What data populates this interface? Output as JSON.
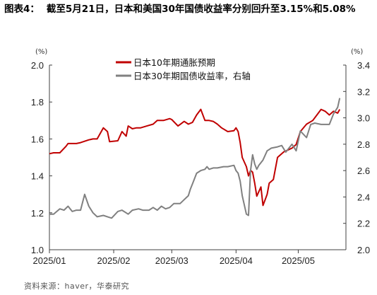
{
  "figure": {
    "label": "图表4：",
    "title": "截至5月21日，日本和美国30年国债收益率分别回升至3.15%和5.08%",
    "source": "资料来源：haver，华泰研究"
  },
  "colors": {
    "red": "#c00000",
    "gray": "#808080",
    "axis": "#404040"
  },
  "chart_data": {
    "type": "line",
    "x_ticks": [
      "2025/01",
      "2025/02",
      "2025/03",
      "2025/04",
      "2025/05"
    ],
    "left_axis": {
      "unit": "(%)",
      "ylim": [
        1.0,
        2.0
      ],
      "ticks": [
        "1.0",
        "1.2",
        "1.4",
        "1.6",
        "1.8",
        "2.0"
      ]
    },
    "right_axis": {
      "unit": "(%)",
      "ylim": [
        2.0,
        3.4
      ],
      "ticks": [
        "2.0",
        "2.2",
        "2.4",
        "2.6",
        "2.8",
        "3.0",
        "3.2",
        "3.4"
      ]
    },
    "legend_position": "top-center",
    "series": [
      {
        "name": "日本10年期通胀预期",
        "axis": "left",
        "color": "#c00000",
        "x": [
          "2025-01-01",
          "2025-01-03",
          "2025-01-06",
          "2025-01-09",
          "2025-01-10",
          "2025-01-13",
          "2025-01-14",
          "2025-01-16",
          "2025-01-20",
          "2025-01-22",
          "2025-01-24",
          "2025-01-27",
          "2025-01-29",
          "2025-01-30",
          "2025-02-03",
          "2025-02-05",
          "2025-02-07",
          "2025-02-08",
          "2025-02-10",
          "2025-02-12",
          "2025-02-14",
          "2025-02-17",
          "2025-02-20",
          "2025-02-22",
          "2025-02-25",
          "2025-02-28",
          "2025-03-01",
          "2025-03-04",
          "2025-03-07",
          "2025-03-09",
          "2025-03-11",
          "2025-03-13",
          "2025-03-15",
          "2025-03-17",
          "2025-03-19",
          "2025-03-21",
          "2025-03-23",
          "2025-03-25",
          "2025-03-28",
          "2025-03-31",
          "2025-04-01",
          "2025-04-02",
          "2025-04-03",
          "2025-04-04",
          "2025-04-06",
          "2025-04-07",
          "2025-04-08",
          "2025-04-09",
          "2025-04-10",
          "2025-04-11",
          "2025-04-13",
          "2025-04-14",
          "2025-04-15",
          "2025-04-16",
          "2025-04-17",
          "2025-04-19",
          "2025-04-21",
          "2025-04-24",
          "2025-04-26",
          "2025-04-28",
          "2025-04-30",
          "2025-05-02",
          "2025-05-05",
          "2025-05-08",
          "2025-05-10",
          "2025-05-12",
          "2025-05-14",
          "2025-05-16",
          "2025-05-18",
          "2025-05-20",
          "2025-05-21"
        ],
        "values": [
          1.52,
          1.525,
          1.525,
          1.56,
          1.575,
          1.575,
          1.575,
          1.58,
          1.595,
          1.6,
          1.6,
          1.66,
          1.64,
          1.585,
          1.59,
          1.64,
          1.615,
          1.67,
          1.655,
          1.66,
          1.66,
          1.67,
          1.68,
          1.7,
          1.7,
          1.71,
          1.705,
          1.67,
          1.695,
          1.68,
          1.69,
          1.73,
          1.76,
          1.7,
          1.7,
          1.695,
          1.68,
          1.66,
          1.64,
          1.645,
          1.66,
          1.64,
          1.58,
          1.5,
          1.45,
          1.4,
          1.43,
          1.42,
          1.36,
          1.29,
          1.34,
          1.24,
          1.27,
          1.3,
          1.36,
          1.38,
          1.5,
          1.53,
          1.54,
          1.55,
          1.57,
          1.64,
          1.68,
          1.7,
          1.73,
          1.76,
          1.75,
          1.73,
          1.75,
          1.74,
          1.76
        ]
      },
      {
        "name": "日本30年期国债收益率，右轴",
        "axis": "right",
        "color": "#808080",
        "x": [
          "2025-01-01",
          "2025-01-03",
          "2025-01-06",
          "2025-01-08",
          "2025-01-10",
          "2025-01-12",
          "2025-01-14",
          "2025-01-16",
          "2025-01-18",
          "2025-01-20",
          "2025-01-22",
          "2025-01-24",
          "2025-01-27",
          "2025-01-29",
          "2025-01-31",
          "2025-02-03",
          "2025-02-05",
          "2025-02-08",
          "2025-02-10",
          "2025-02-13",
          "2025-02-15",
          "2025-02-18",
          "2025-02-20",
          "2025-02-22",
          "2025-02-24",
          "2025-02-26",
          "2025-02-28",
          "2025-03-02",
          "2025-03-05",
          "2025-03-07",
          "2025-03-09",
          "2025-03-10",
          "2025-03-11",
          "2025-03-13",
          "2025-03-15",
          "2025-03-17",
          "2025-03-18",
          "2025-03-19",
          "2025-03-21",
          "2025-03-23",
          "2025-03-26",
          "2025-03-28",
          "2025-03-31",
          "2025-04-01",
          "2025-04-02",
          "2025-04-03",
          "2025-04-04",
          "2025-04-06",
          "2025-04-07",
          "2025-04-08",
          "2025-04-09",
          "2025-04-10",
          "2025-04-11",
          "2025-04-12",
          "2025-04-14",
          "2025-04-16",
          "2025-04-18",
          "2025-04-21",
          "2025-04-23",
          "2025-04-25",
          "2025-04-28",
          "2025-04-30",
          "2025-05-02",
          "2025-05-05",
          "2025-05-07",
          "2025-05-09",
          "2025-05-12",
          "2025-05-14",
          "2025-05-16",
          "2025-05-18",
          "2025-05-20",
          "2025-05-21"
        ],
        "values": [
          2.27,
          2.27,
          2.31,
          2.3,
          2.33,
          2.29,
          2.3,
          2.3,
          2.42,
          2.33,
          2.28,
          2.25,
          2.26,
          2.25,
          2.24,
          2.29,
          2.3,
          2.27,
          2.3,
          2.31,
          2.3,
          2.3,
          2.32,
          2.3,
          2.33,
          2.31,
          2.32,
          2.35,
          2.35,
          2.38,
          2.41,
          2.46,
          2.5,
          2.58,
          2.6,
          2.61,
          2.63,
          2.61,
          2.62,
          2.62,
          2.63,
          2.63,
          2.64,
          2.6,
          2.58,
          2.52,
          2.41,
          2.27,
          2.26,
          2.6,
          2.72,
          2.65,
          2.61,
          2.64,
          2.68,
          2.75,
          2.77,
          2.78,
          2.79,
          2.74,
          2.8,
          2.75,
          2.9,
          2.85,
          2.95,
          2.96,
          2.95,
          2.95,
          2.95,
          3.03,
          3.08,
          3.15
        ]
      }
    ]
  }
}
